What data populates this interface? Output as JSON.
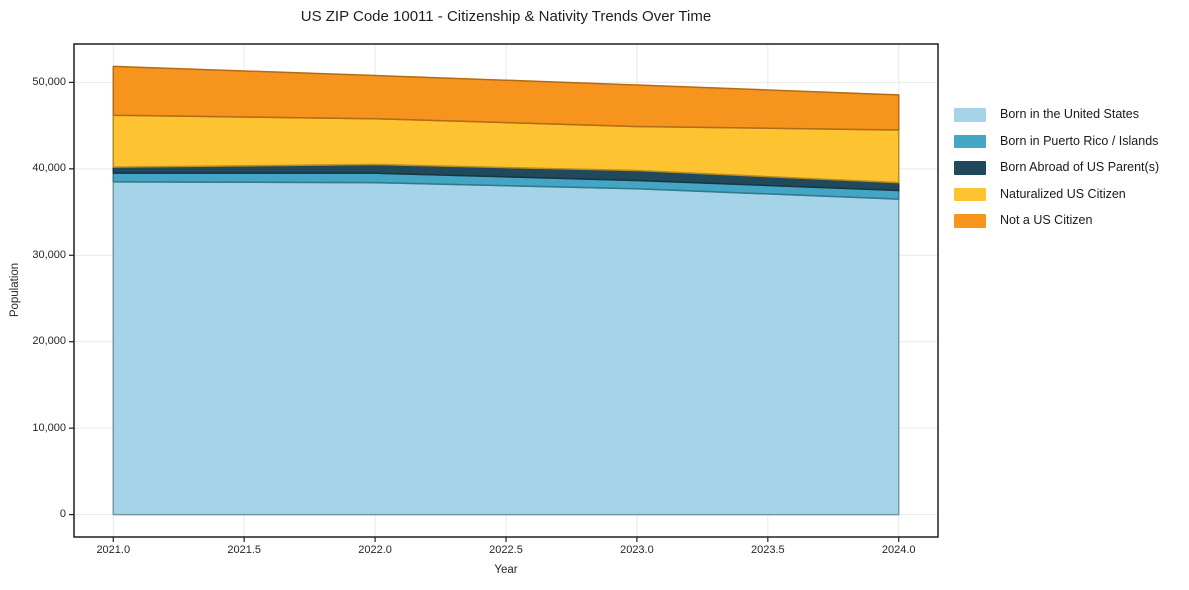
{
  "figure": {
    "title": "US ZIP Code 10011 - Citizenship & Nativity Trends Over Time"
  },
  "chart_data": {
    "type": "area",
    "stacked": true,
    "title": "US ZIP Code 10011 - Citizenship & Nativity Trends Over Time",
    "xlabel": "Year",
    "ylabel": "Population",
    "x": [
      2021,
      2022,
      2023,
      2024
    ],
    "series": [
      {
        "name": "Born in the United States",
        "color": "#A5D3E8",
        "values": [
          38500,
          38400,
          37700,
          36500
        ]
      },
      {
        "name": "Born in Puerto Rico / Islands",
        "color": "#44A5C4",
        "values": [
          1000,
          1100,
          950,
          1000
        ]
      },
      {
        "name": "Born Abroad of US Parent(s)",
        "color": "#21495C",
        "values": [
          700,
          1000,
          1150,
          900
        ]
      },
      {
        "name": "Naturalized US Citizen",
        "color": "#FDC330",
        "values": [
          6000,
          5300,
          5100,
          6100
        ]
      },
      {
        "name": "Not a US Citizen",
        "color": "#F7941E",
        "values": [
          5650,
          5000,
          4800,
          4050
        ]
      }
    ],
    "totals": [
      51850,
      50800,
      49700,
      48550
    ],
    "x_ticks": [
      2021.0,
      2021.5,
      2022.0,
      2022.5,
      2023.0,
      2023.5,
      2024.0
    ],
    "x_tick_labels": [
      "2021.0",
      "2021.5",
      "2022.0",
      "2022.5",
      "2023.0",
      "2023.5",
      "2024.0"
    ],
    "y_ticks": [
      0,
      10000,
      20000,
      30000,
      40000,
      50000
    ],
    "y_tick_labels": [
      "0",
      "10,000",
      "20,000",
      "30,000",
      "40,000",
      "50,000"
    ],
    "xlim": [
      2020.85,
      2024.15
    ],
    "ylim": [
      -2592,
      54442
    ],
    "grid": true,
    "legend_position": "outside-right"
  }
}
